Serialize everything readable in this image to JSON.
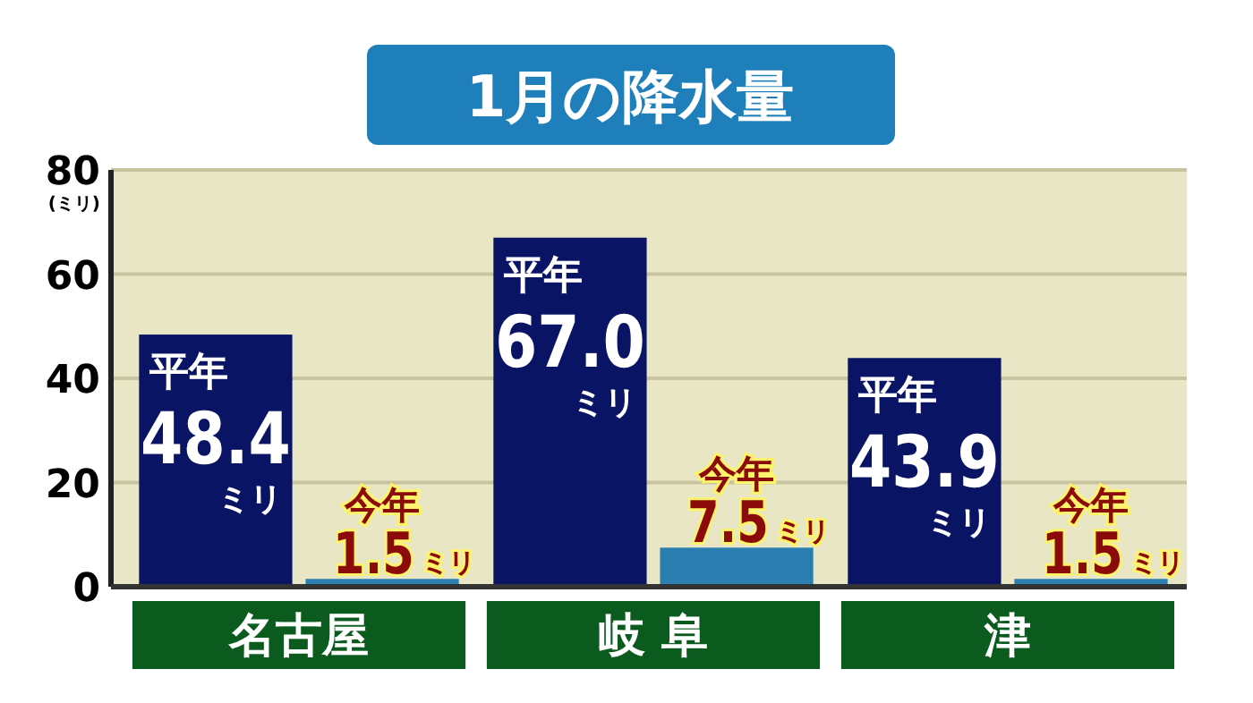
{
  "chart_data": {
    "type": "bar",
    "title": "1月の降水量",
    "ylabel": "(ミリ)",
    "categories": [
      "名古屋",
      "岐 阜",
      "津"
    ],
    "series": [
      {
        "name": "平年",
        "color": "#0a1464",
        "values": [
          48.4,
          67.0,
          43.9
        ],
        "value_labels": [
          "48.4ミリ",
          "67.0ミリ",
          "43.9ミリ"
        ]
      },
      {
        "name": "今年",
        "color": "#2a7fb0",
        "values": [
          1.5,
          7.5,
          1.5
        ],
        "value_labels": [
          "1.5ミリ",
          "7.5ミリ",
          "1.5ミリ"
        ]
      }
    ],
    "ylim": [
      0,
      80
    ],
    "yticks": [
      0,
      20,
      40,
      60,
      80
    ],
    "grid": "y"
  }
}
